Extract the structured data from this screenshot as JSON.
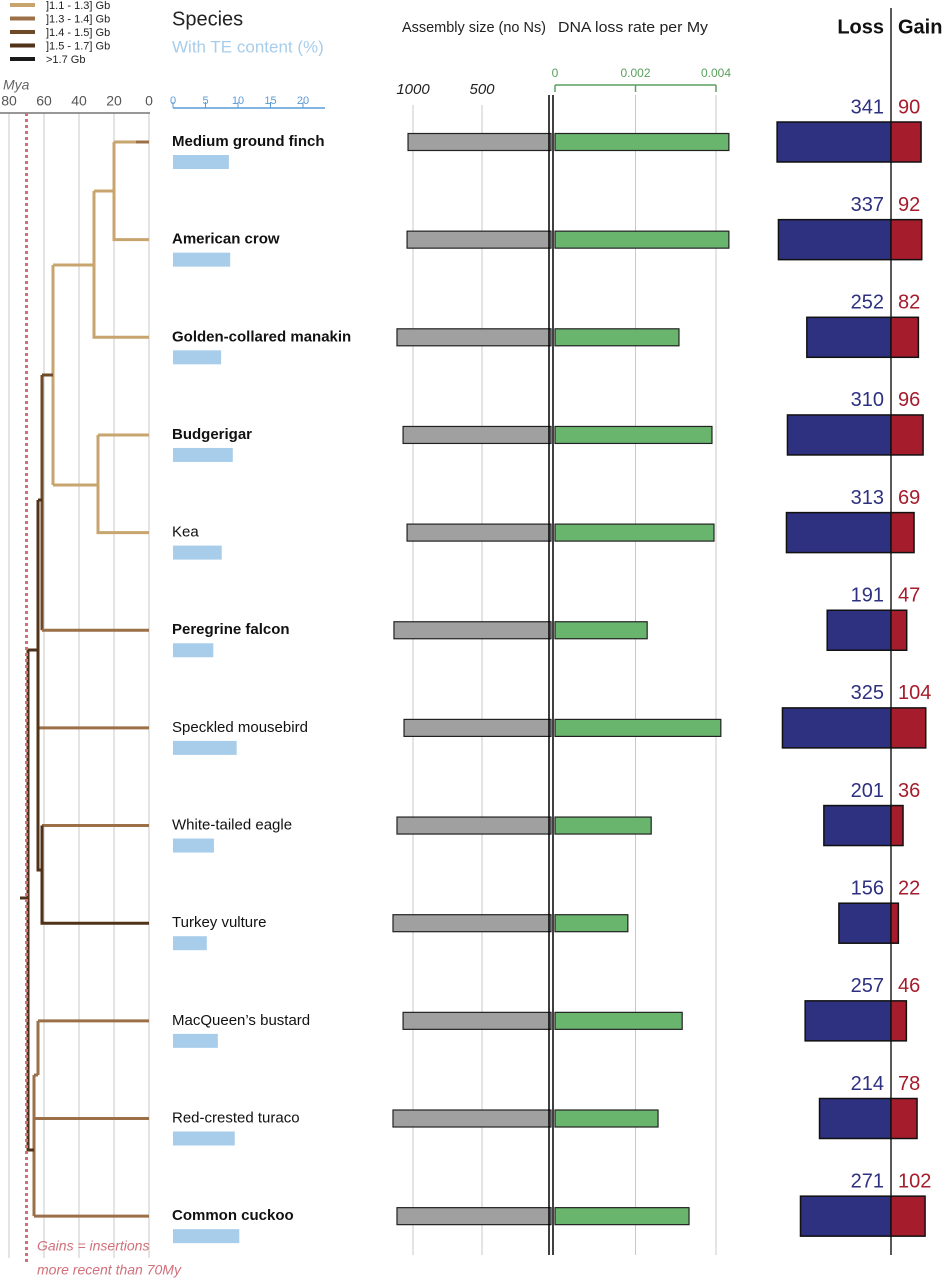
{
  "chart_data": [
    {
      "type": "tree",
      "xlabel": "Mya",
      "xlim": [
        80,
        0
      ],
      "xticks": [
        80,
        60,
        40,
        20,
        0
      ],
      "marker": 70,
      "marker_color": "#d0707a",
      "annotation": [
        "Gains = insertions",
        "more recent than 70My"
      ],
      "legend": [
        {
          "label": "]1.1 - 1.3] Gb",
          "color": "#c8a46e"
        },
        {
          "label": "]1.3 - 1.4] Gb",
          "color": "#9b7048"
        },
        {
          "label": "]1.4 - 1.5] Gb",
          "color": "#6f4a28"
        },
        {
          "label": "]1.5 - 1.7] Gb",
          "color": "#4f3217"
        },
        {
          "label": ">1.7 Gb",
          "color": "#1a1a1a"
        }
      ],
      "categories": [
        "Medium ground finch",
        "American crow",
        "Golden-collared manakin",
        "Budgerigar",
        "Kea",
        "Peregrine falcon",
        "Speckled mousebird",
        "White-tailed eagle",
        "Turkey vulture",
        "MacQueen’s bustard",
        "Red-crested turaco",
        "Common cuckoo"
      ],
      "highlighted": [
        true,
        true,
        true,
        true,
        false,
        true,
        false,
        false,
        false,
        false,
        false,
        true
      ]
    },
    {
      "type": "bar",
      "title": "Species",
      "xlabel": "With TE content (%)",
      "color": "#a8cdea",
      "xlim": [
        0,
        23
      ],
      "xticks": [
        0,
        5,
        10,
        15,
        20
      ],
      "values": [
        8.6,
        8.8,
        7.4,
        9.2,
        7.5,
        6.2,
        9.8,
        6.3,
        5.2,
        6.9,
        9.5,
        10.2
      ]
    },
    {
      "type": "bar",
      "title": "Assembly size (no Ns)",
      "color": "#a0a0a0",
      "reversed": true,
      "xlim": [
        0,
        1150
      ],
      "xticks": [
        1000,
        500
      ],
      "values": [
        1036,
        1043,
        1116,
        1072,
        1043,
        1138,
        1065,
        1116,
        1145,
        1072,
        1145,
        1116
      ]
    },
    {
      "type": "bar",
      "title": "DNA loss rate per My",
      "color": "#6ab56e",
      "xlim": [
        0,
        0.0045
      ],
      "xticks": [
        0,
        0.002,
        0.004
      ],
      "values": [
        0.00432,
        0.00432,
        0.00308,
        0.0039,
        0.00395,
        0.00229,
        0.00412,
        0.00239,
        0.00181,
        0.00316,
        0.00256,
        0.00333
      ]
    },
    {
      "type": "diverging_bar",
      "series": [
        {
          "name": "Loss",
          "color": "#2e3080",
          "values": [
            341,
            337,
            252,
            310,
            313,
            191,
            325,
            201,
            156,
            257,
            214,
            271
          ]
        },
        {
          "name": "Gain",
          "color": "#a51c2c",
          "values": [
            90,
            92,
            82,
            96,
            69,
            47,
            104,
            36,
            22,
            46,
            78,
            102
          ]
        }
      ]
    }
  ]
}
